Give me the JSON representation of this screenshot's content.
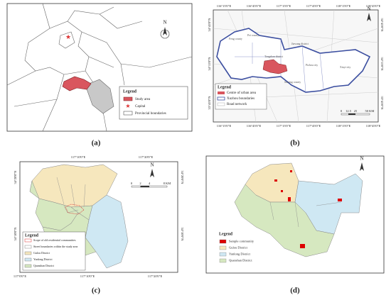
{
  "panels": [
    {
      "caption": "(a)",
      "north": "N",
      "legend": {
        "title": "Legend",
        "items": [
          "Study area",
          "Capital",
          "Provincial boundaries"
        ]
      }
    },
    {
      "caption": "(b)",
      "north": "N",
      "top_coords": [
        "116°15'0\"E",
        "116°45'0\"E",
        "117°15'0\"E",
        "117°45'0\"E",
        "118°15'0\"E",
        "118°45'0\"E"
      ],
      "bottom_coords": [
        "116°15'0\"E",
        "116°45'0\"E",
        "117°15'0\"E",
        "117°45'0\"E",
        "118°15'0\"E",
        "118°45'0\"E"
      ],
      "left_coords": [
        "34°45'0\"N",
        "34°15'0\"N",
        "33°45'0\"N"
      ],
      "right_coords": [
        "34°45'0\"N",
        "34°15'0\"N",
        "33°45'0\"N"
      ],
      "places": [
        "Feng county",
        "Pei county",
        "Jiawang district",
        "Tongshan district",
        "Pizhou city",
        "Xinyi city",
        "Suining county"
      ],
      "scale": [
        "0",
        "12.5",
        "25",
        "50 KM"
      ],
      "legend": {
        "title": "Legend",
        "items": [
          "Centre of urban area",
          "Xuzhou boundaries",
          "Road network"
        ]
      }
    },
    {
      "caption": "(c)",
      "north": "N",
      "top_coords": [
        "117°10'0\"E",
        "117°20'0\"E"
      ],
      "bottom_coords": [
        "117°0'0\"E",
        "117°10'0\"E",
        "117°20'0\"E"
      ],
      "left_coords": [
        "34°20'0\"N",
        "34°10'0\"N"
      ],
      "right_coords": [
        "34°20'0\"N",
        "34°10'0\"N"
      ],
      "scale": [
        "0",
        "2",
        "4",
        "8 KM"
      ],
      "legend": {
        "title": "Legend",
        "items": [
          "Scope of old residential communities",
          "Street boundaries within the study area",
          "Gulou District",
          "Yunlong District",
          "Quanshan District"
        ]
      }
    },
    {
      "caption": "(d)",
      "north": "N",
      "legend": {
        "title": "Legend",
        "items": [
          "Sample community",
          "Gulou District",
          "Yunlong District",
          "Quanshan District"
        ]
      }
    }
  ]
}
